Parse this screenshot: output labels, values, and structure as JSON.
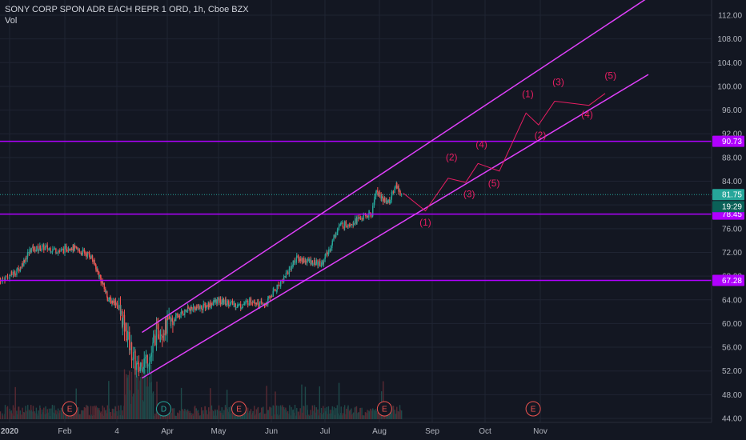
{
  "header": {
    "title": "SONY CORP SPON ADR EACH REPR 1 ORD, 1h, Cboe BZX",
    "volume_label": "Vol"
  },
  "colors": {
    "background": "#131722",
    "channel": "#e040fb",
    "horizontal_level": "#b000ff",
    "wave": "#e91e63",
    "up_candle": "#26a69a",
    "down_candle": "#ef5350",
    "price_tag": "#26a69a",
    "timer_tag": "#0b6158",
    "event_badge": "#ef5350",
    "dividend_badge": "#26a69a"
  },
  "chart_data": {
    "type": "candlestick",
    "title": "SONY CORP SPON ADR EACH REPR 1 ORD, 1h, Cboe BZX",
    "ylabel": "",
    "xlabel": "",
    "ylim": [
      43.5,
      114
    ],
    "y_scale": "linear",
    "price_ticks": [
      44,
      48,
      52,
      56,
      60,
      64,
      68,
      72,
      76,
      80,
      84,
      88,
      92,
      96,
      100,
      104,
      108,
      112
    ],
    "price_tick_labels": [
      "44.00",
      "48.00",
      "52.00",
      "56.00",
      "60.00",
      "64.00",
      "68.00",
      "72.00",
      "76.00",
      "80.00",
      "84.00",
      "88.00",
      "92.00",
      "96.00",
      "100.00",
      "104.00",
      "108.00",
      "112.00"
    ],
    "time_ticks": [
      {
        "label": "2020",
        "date": "2020-01-01",
        "bold": true
      },
      {
        "label": "Feb",
        "date": "2020-02-01"
      },
      {
        "label": "4",
        "date": "2020-03-04"
      },
      {
        "label": "Apr",
        "date": "2020-04-01"
      },
      {
        "label": "May",
        "date": "2020-05-01"
      },
      {
        "label": "Jun",
        "date": "2020-06-01"
      },
      {
        "label": "Jul",
        "date": "2020-07-01"
      },
      {
        "label": "Aug",
        "date": "2020-08-01"
      },
      {
        "label": "Sep",
        "date": "2020-09-01"
      },
      {
        "label": "Oct",
        "date": "2020-10-01"
      },
      {
        "label": "Nov",
        "date": "2020-11-01"
      }
    ],
    "price_path": [
      [
        "2019-12-28",
        67.3
      ],
      [
        "2020-01-06",
        69.0
      ],
      [
        "2020-01-13",
        72.5
      ],
      [
        "2020-01-21",
        72.8
      ],
      [
        "2020-01-30",
        72.2
      ],
      [
        "2020-02-04",
        73.0
      ],
      [
        "2020-02-10",
        72.2
      ],
      [
        "2020-02-17",
        71.5
      ],
      [
        "2020-02-24",
        67.0
      ],
      [
        "2020-02-28",
        64.0
      ],
      [
        "2020-03-04",
        63.5
      ],
      [
        "2020-03-09",
        59.0
      ],
      [
        "2020-03-12",
        55.5
      ],
      [
        "2020-03-16",
        52.0
      ],
      [
        "2020-03-18",
        53.5
      ],
      [
        "2020-03-23",
        54.5
      ],
      [
        "2020-03-26",
        58.5
      ],
      [
        "2020-04-01",
        59.5
      ],
      [
        "2020-04-06",
        61.0
      ],
      [
        "2020-04-14",
        62.5
      ],
      [
        "2020-04-22",
        62.8
      ],
      [
        "2020-04-30",
        63.8
      ],
      [
        "2020-05-07",
        63.5
      ],
      [
        "2020-05-14",
        63.0
      ],
      [
        "2020-05-21",
        64.0
      ],
      [
        "2020-05-28",
        63.0
      ],
      [
        "2020-06-04",
        66.0
      ],
      [
        "2020-06-10",
        68.5
      ],
      [
        "2020-06-15",
        71.0
      ],
      [
        "2020-06-22",
        70.5
      ],
      [
        "2020-06-29",
        70.0
      ],
      [
        "2020-07-03",
        72.0
      ],
      [
        "2020-07-09",
        76.5
      ],
      [
        "2020-07-16",
        77.0
      ],
      [
        "2020-07-23",
        78.0
      ],
      [
        "2020-07-28",
        78.5
      ],
      [
        "2020-07-30",
        82.5
      ],
      [
        "2020-08-03",
        81.0
      ],
      [
        "2020-08-07",
        80.5
      ],
      [
        "2020-08-11",
        83.5
      ],
      [
        "2020-08-14",
        81.75
      ]
    ],
    "volume_note": "volume histogram along the bottom of the price pane",
    "annotations": {
      "channel_upper": [
        [
          "2020-03-18",
          58.5
        ],
        [
          "2020-12-31",
          115.0
        ]
      ],
      "channel_lower": [
        [
          "2020-03-18",
          50.8
        ],
        [
          "2020-12-31",
          102.0
        ]
      ],
      "horizontal_levels": [
        {
          "price": 90.73,
          "label": "90.73"
        },
        {
          "price": 78.45,
          "label": "78.45"
        },
        {
          "price": 67.28,
          "label": "67.28"
        }
      ],
      "current_price": {
        "price": 81.75,
        "label": "81.75",
        "timer": "19:29"
      },
      "wave_path": [
        [
          "2020-08-15",
          82.0
        ],
        [
          "2020-08-28",
          79.0
        ],
        [
          "2020-09-10",
          84.5
        ],
        [
          "2020-09-20",
          83.8
        ],
        [
          "2020-09-27",
          87.0
        ],
        [
          "2020-10-09",
          85.7
        ],
        [
          "2020-10-24",
          95.5
        ],
        [
          "2020-10-31",
          93.5
        ],
        [
          "2020-11-09",
          97.5
        ],
        [
          "2020-11-28",
          96.8
        ],
        [
          "2020-12-07",
          98.8
        ]
      ],
      "wave_labels": [
        {
          "text": "(1)",
          "date": "2020-08-28",
          "price": 76.5
        },
        {
          "text": "(2)",
          "date": "2020-09-12",
          "price": 87.5
        },
        {
          "text": "(3)",
          "date": "2020-09-22",
          "price": 81.3
        },
        {
          "text": "(4)",
          "date": "2020-09-29",
          "price": 89.7
        },
        {
          "text": "(5)",
          "date": "2020-10-06",
          "price": 83.1
        },
        {
          "text": "(1)",
          "date": "2020-10-25",
          "price": 98.2
        },
        {
          "text": "(2)",
          "date": "2020-11-01",
          "price": 91.2
        },
        {
          "text": "(3)",
          "date": "2020-11-11",
          "price": 100.2
        },
        {
          "text": "(4)",
          "date": "2020-11-27",
          "price": 94.7
        },
        {
          "text": "(5)",
          "date": "2020-12-10",
          "price": 101.3
        }
      ],
      "event_badges": [
        {
          "text": "E",
          "date": "2020-02-04",
          "kind": "earnings"
        },
        {
          "text": "D",
          "date": "2020-03-30",
          "kind": "dividend"
        },
        {
          "text": "E",
          "date": "2020-05-13",
          "kind": "earnings"
        },
        {
          "text": "E",
          "date": "2020-08-04",
          "kind": "earnings"
        },
        {
          "text": "E",
          "date": "2020-10-28",
          "kind": "earnings"
        }
      ]
    }
  }
}
